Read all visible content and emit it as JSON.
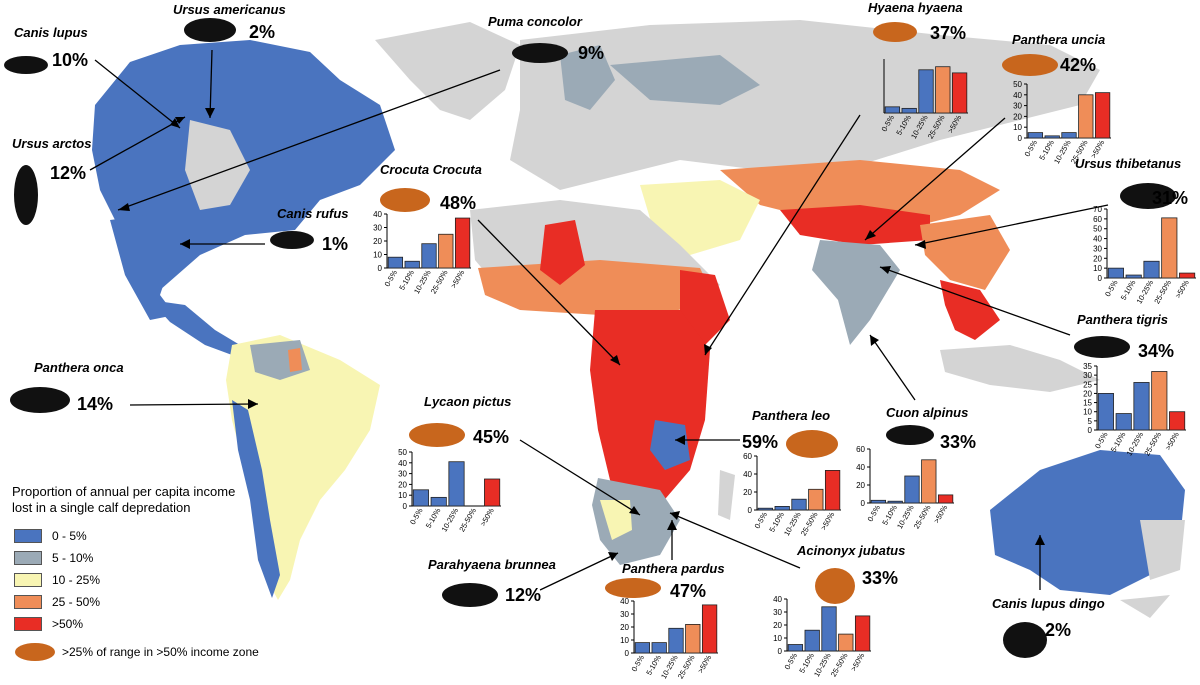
{
  "colors": {
    "c0": "#4A74BF",
    "c1": "#9BAAB6",
    "c2": "#F8F5B3",
    "c3": "#EF8D58",
    "c4": "#E82D25",
    "land": "#D4D4D4",
    "silhouette_black": "#111111",
    "silhouette_orange": "#C8661D"
  },
  "legend": {
    "title_line1": "Proportion of annual per capita income",
    "title_line2": "lost in a single calf depredation",
    "items": [
      {
        "label": "0 - 5%",
        "color_key": "c0"
      },
      {
        "label": "5 - 10%",
        "color_key": "c1"
      },
      {
        "label": "10 - 25%",
        "color_key": "c2"
      },
      {
        "label": "25 - 50%",
        "color_key": "c3"
      },
      {
        "label": ">50%",
        "color_key": "c4"
      }
    ],
    "icon_label": ">25% of range in >50% income zone"
  },
  "species": [
    {
      "name": "Canis lupus",
      "pct": "10%",
      "silhouette": "wolf-icon",
      "orange": false
    },
    {
      "name": "Ursus americanus",
      "pct": "2%",
      "silhouette": "bear-icon",
      "orange": false
    },
    {
      "name": "Ursus arctos",
      "pct": "12%",
      "silhouette": "standing-bear-icon",
      "orange": false
    },
    {
      "name": "Canis rufus",
      "pct": "1%",
      "silhouette": "red-wolf-icon",
      "orange": false
    },
    {
      "name": "Puma concolor",
      "pct": "9%",
      "silhouette": "puma-icon",
      "orange": false
    },
    {
      "name": "Panthera onca",
      "pct": "14%",
      "silhouette": "jaguar-icon",
      "orange": false
    },
    {
      "name": "Crocuta Crocuta",
      "pct": "48%",
      "silhouette": "spotted-hyena-icon",
      "orange": true
    },
    {
      "name": "Hyaena hyaena",
      "pct": "37%",
      "silhouette": "striped-hyena-icon",
      "orange": true
    },
    {
      "name": "Panthera uncia",
      "pct": "42%",
      "silhouette": "snow-leopard-icon",
      "orange": true
    },
    {
      "name": "Ursus thibetanus",
      "pct": "31%",
      "silhouette": "asiatic-bear-icon",
      "orange": false
    },
    {
      "name": "Panthera tigris",
      "pct": "34%",
      "silhouette": "tiger-icon",
      "orange": false
    },
    {
      "name": "Cuon alpinus",
      "pct": "33%",
      "silhouette": "dhole-icon",
      "orange": false
    },
    {
      "name": "Lycaon pictus",
      "pct": "45%",
      "silhouette": "wild-dog-icon",
      "orange": true
    },
    {
      "name": "Panthera leo",
      "pct": "59%",
      "silhouette": "lion-icon",
      "orange": true
    },
    {
      "name": "Parahyaena brunnea",
      "pct": "12%",
      "silhouette": "brown-hyena-icon",
      "orange": false
    },
    {
      "name": "Panthera pardus",
      "pct": "47%",
      "silhouette": "leopard-icon",
      "orange": true
    },
    {
      "name": "Acinonyx jubatus",
      "pct": "33%",
      "silhouette": "cheetah-icon",
      "orange": true
    },
    {
      "name": "Canis lupus dingo",
      "pct": "2%",
      "silhouette": "dingo-icon",
      "orange": false
    }
  ],
  "chart_data": [
    {
      "type": "bar",
      "species": "Crocuta Crocuta",
      "categories": [
        "0-5%",
        "5-10%",
        "10-25%",
        "25-50%",
        ">50%"
      ],
      "values": [
        8,
        5,
        18,
        25,
        37
      ],
      "ylim": [
        0,
        40
      ],
      "yticks": [
        "0",
        "10",
        "20",
        "30",
        "40"
      ]
    },
    {
      "type": "bar",
      "species": "Hyaena hyaena",
      "categories": [
        "0-5%",
        "5-10%",
        "10-25%",
        "25-50%",
        ">50%"
      ],
      "values": [
        4,
        3,
        28,
        30,
        26
      ],
      "ylim": [
        0,
        35
      ],
      "yticks": []
    },
    {
      "type": "bar",
      "species": "Panthera uncia",
      "categories": [
        "0-5%",
        "5-10%",
        "10-25%",
        "25-50%",
        ">50%"
      ],
      "values": [
        5,
        2,
        5,
        40,
        42
      ],
      "ylim": [
        0,
        50
      ],
      "yticks": [
        "0",
        "10",
        "20",
        "30",
        "40",
        "50"
      ]
    },
    {
      "type": "bar",
      "species": "Ursus thibetanus",
      "categories": [
        "0-5%",
        "5-10%",
        "10-25%",
        "25-50%",
        ">50%"
      ],
      "values": [
        10,
        3,
        17,
        61,
        5
      ],
      "ylim": [
        0,
        70
      ],
      "yticks": [
        "0",
        "10",
        "20",
        "30",
        "40",
        "50",
        "60",
        "70"
      ]
    },
    {
      "type": "bar",
      "species": "Panthera tigris",
      "categories": [
        "0-5%",
        "5-10%",
        "10-25%",
        "25-50%",
        ">50%"
      ],
      "values": [
        20,
        9,
        26,
        32,
        10
      ],
      "ylim": [
        0,
        35
      ],
      "yticks": [
        "0",
        "5",
        "10",
        "15",
        "20",
        "25",
        "30",
        "35"
      ]
    },
    {
      "type": "bar",
      "species": "Cuon alpinus",
      "categories": [
        "0-5%",
        "5-10%",
        "10-25%",
        "25-50%",
        ">50%"
      ],
      "values": [
        3,
        2,
        30,
        48,
        9
      ],
      "ylim": [
        0,
        60
      ],
      "yticks": [
        "0",
        "20",
        "40",
        "60"
      ]
    },
    {
      "type": "bar",
      "species": "Lycaon pictus",
      "categories": [
        "0-5%",
        "5-10%",
        "10-25%",
        "25-50%",
        ">50%"
      ],
      "values": [
        15,
        8,
        41,
        0,
        25
      ],
      "ylim": [
        0,
        50
      ],
      "yticks": [
        "0",
        "10",
        "20",
        "30",
        "40",
        "50"
      ]
    },
    {
      "type": "bar",
      "species": "Panthera leo",
      "categories": [
        "0-5%",
        "5-10%",
        "10-25%",
        "25-50%",
        ">50%"
      ],
      "values": [
        2,
        4,
        12,
        23,
        44
      ],
      "ylim": [
        0,
        60
      ],
      "yticks": [
        "0",
        "20",
        "40",
        "60"
      ]
    },
    {
      "type": "bar",
      "species": "Panthera pardus",
      "categories": [
        "0-5%",
        "5-10%",
        "10-25%",
        "25-50%",
        ">50%"
      ],
      "values": [
        8,
        8,
        19,
        22,
        37
      ],
      "ylim": [
        0,
        40
      ],
      "yticks": [
        "0",
        "10",
        "20",
        "30",
        "40"
      ]
    },
    {
      "type": "bar",
      "species": "Acinonyx jubatus",
      "categories": [
        "0-5%",
        "5-10%",
        "10-25%",
        "25-50%",
        ">50%"
      ],
      "values": [
        5,
        16,
        34,
        13,
        27
      ],
      "ylim": [
        0,
        40
      ],
      "yticks": [
        "0",
        "10",
        "20",
        "30",
        "40"
      ]
    }
  ]
}
